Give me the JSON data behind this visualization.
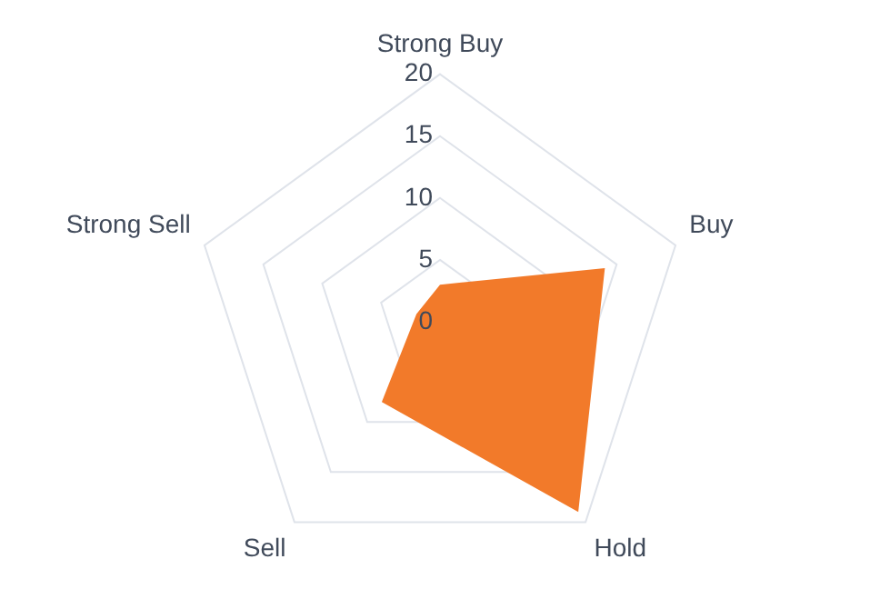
{
  "chart_data": {
    "type": "radar",
    "categories": [
      "Strong Buy",
      "Buy",
      "Hold",
      "Sell",
      "Strong Sell"
    ],
    "series": [
      {
        "color": "#f27a2a",
        "values": [
          3,
          14,
          19,
          8,
          2
        ]
      }
    ],
    "ylim": [
      0,
      20
    ],
    "yticks": [
      0,
      5,
      10,
      15,
      20
    ],
    "grid": true,
    "legend": false
  }
}
